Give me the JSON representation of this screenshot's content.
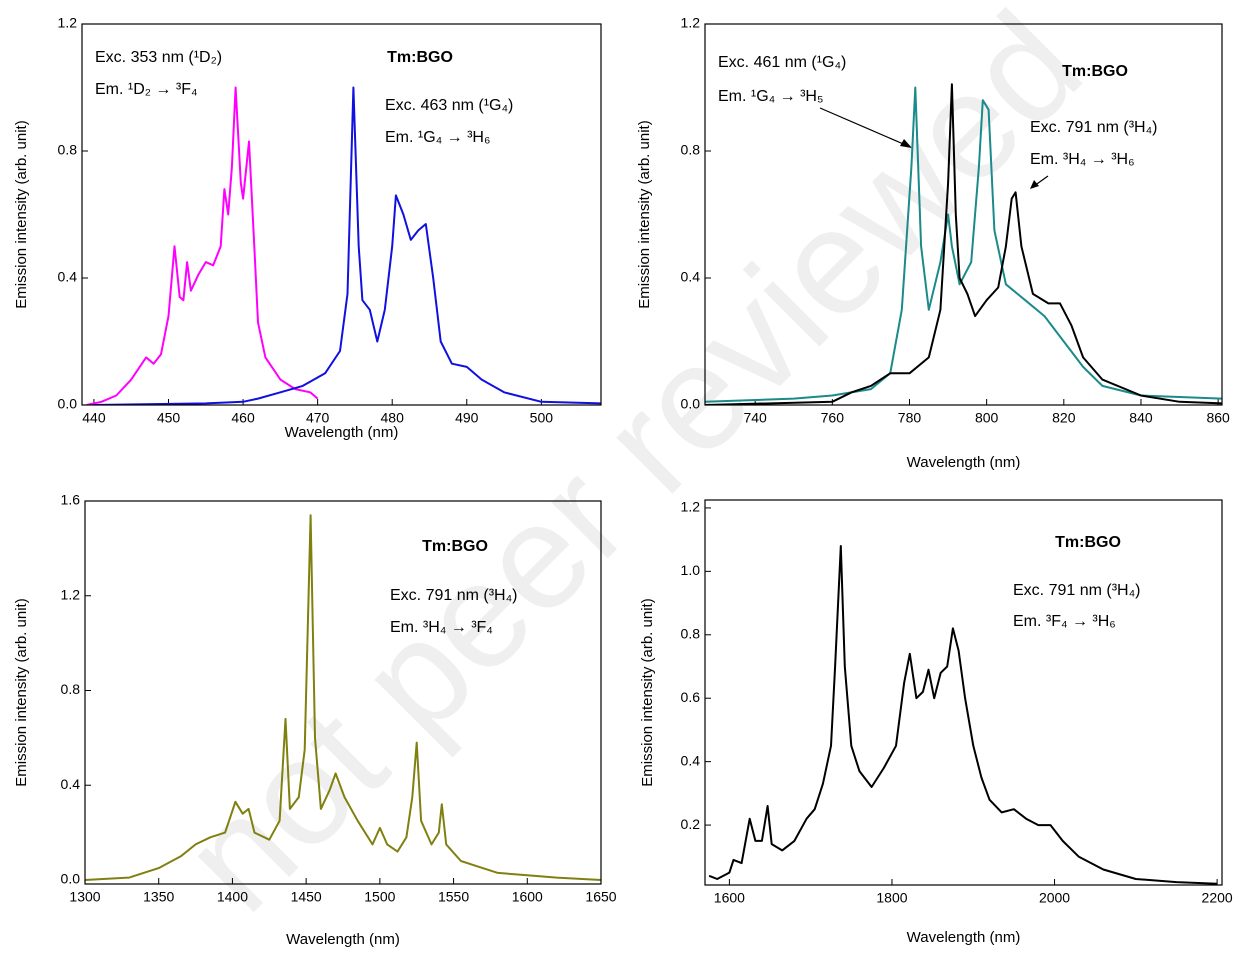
{
  "watermark": "not peer reviewed",
  "chart_data": [
    {
      "type": "line",
      "title": "Tm:BGO",
      "xlabel": "Wavelength (nm)",
      "ylabel": "Emission intensity (arb. unit)",
      "xlim": [
        438.4,
        508
      ],
      "ylim": [
        0,
        1.2
      ],
      "xticks": [
        440,
        450,
        460,
        470,
        480,
        490,
        500
      ],
      "yticks": [
        {
          "value": 0,
          "label": "0.0"
        },
        0.4,
        0.8,
        1.2
      ],
      "annotations": [
        "Exc. 353 nm (¹D₂)",
        "Em. ¹D₂ → ³F₄",
        "Exc. 463 nm (¹G₄)",
        "Em. ¹G₄ → ³H₆"
      ],
      "series": [
        {
          "color": "#ff00ff",
          "x": [
            439,
            441,
            443,
            445,
            447,
            448,
            449,
            450,
            450.8,
            451.5,
            452,
            452.5,
            453,
            454,
            455,
            456,
            457,
            457.5,
            458,
            458.5,
            459,
            459.7,
            460,
            460.8,
            461.5,
            462,
            463,
            465,
            467,
            469,
            470
          ],
          "values": [
            0.0,
            0.01,
            0.03,
            0.08,
            0.15,
            0.13,
            0.16,
            0.28,
            0.5,
            0.34,
            0.33,
            0.45,
            0.36,
            0.41,
            0.45,
            0.44,
            0.5,
            0.68,
            0.6,
            0.75,
            1.0,
            0.7,
            0.65,
            0.83,
            0.5,
            0.26,
            0.15,
            0.08,
            0.05,
            0.04,
            0.02
          ]
        },
        {
          "color": "#1010e0",
          "x": [
            440,
            455,
            460,
            462,
            465,
            468,
            471,
            473,
            474,
            474.8,
            475.5,
            476,
            477,
            478,
            479,
            480,
            480.5,
            481.5,
            482.5,
            483.5,
            484.5,
            485.5,
            486.5,
            488,
            490,
            492,
            495,
            500,
            508
          ],
          "values": [
            0.0,
            0.005,
            0.01,
            0.02,
            0.04,
            0.06,
            0.1,
            0.17,
            0.35,
            1.0,
            0.5,
            0.33,
            0.3,
            0.2,
            0.3,
            0.5,
            0.66,
            0.6,
            0.52,
            0.55,
            0.57,
            0.4,
            0.2,
            0.13,
            0.12,
            0.08,
            0.04,
            0.01,
            0.005
          ]
        }
      ]
    },
    {
      "type": "line",
      "title": "Tm:BGO",
      "xlabel": "Wavelength (nm)",
      "ylabel": "Emission intensity (arb. unit)",
      "xlim": [
        727,
        861
      ],
      "ylim": [
        0,
        1.2
      ],
      "xticks": [
        740,
        760,
        780,
        800,
        820,
        840,
        860
      ],
      "yticks": [
        {
          "value": 0,
          "label": "0.0"
        },
        0.4,
        0.8,
        1.2
      ],
      "annotations": [
        "Exc. 461 nm (¹G₄)",
        "Em. ¹G₄ → ³H₅",
        "Exc. 791 nm (³H₄)",
        "Em. ³H₄ → ³H₆"
      ],
      "series": [
        {
          "color": "#1a8a8a",
          "x": [
            727,
            750,
            760,
            770,
            775,
            778,
            780.5,
            781.5,
            783,
            785,
            788,
            790,
            791,
            793,
            796,
            798,
            799,
            800.5,
            802,
            805,
            810,
            815,
            820,
            825,
            830,
            840,
            861
          ],
          "values": [
            0.01,
            0.02,
            0.03,
            0.05,
            0.1,
            0.3,
            0.75,
            1.0,
            0.5,
            0.3,
            0.45,
            0.6,
            0.5,
            0.38,
            0.45,
            0.75,
            0.96,
            0.93,
            0.55,
            0.38,
            0.33,
            0.28,
            0.2,
            0.12,
            0.06,
            0.03,
            0.02
          ]
        },
        {
          "color": "#000000",
          "x": [
            727,
            760,
            765,
            770,
            775,
            780,
            785,
            788,
            790,
            791,
            792,
            793,
            795,
            797,
            800,
            803,
            805,
            806.5,
            807.5,
            809,
            812,
            816,
            819,
            822,
            825,
            830,
            840,
            850,
            861
          ],
          "values": [
            0.0,
            0.01,
            0.04,
            0.06,
            0.1,
            0.1,
            0.15,
            0.3,
            0.7,
            1.01,
            0.6,
            0.4,
            0.35,
            0.28,
            0.33,
            0.37,
            0.5,
            0.65,
            0.67,
            0.5,
            0.35,
            0.32,
            0.32,
            0.25,
            0.15,
            0.08,
            0.03,
            0.01,
            0.005
          ]
        }
      ]
    },
    {
      "type": "line",
      "title": "Tm:BGO",
      "xlabel": "Wavelength (nm)",
      "ylabel": "Emission intensity (arb. unit)",
      "xlim": [
        1300,
        1650
      ],
      "ylim": [
        -0.017,
        1.6
      ],
      "xticks": [
        1300,
        1350,
        1400,
        1450,
        1500,
        1550,
        1600,
        1650
      ],
      "yticks": [
        {
          "value": 0,
          "label": "0.0"
        },
        0.4,
        0.8,
        1.2,
        1.6
      ],
      "annotations": [
        "Exc. 791 nm (³H₄)",
        "Em. ³H₄ → ³F₄"
      ],
      "series": [
        {
          "color": "#808010",
          "x": [
            1300,
            1330,
            1350,
            1365,
            1375,
            1385,
            1395,
            1402,
            1407,
            1411,
            1415,
            1425,
            1432,
            1436,
            1439,
            1445,
            1449,
            1453,
            1456,
            1460,
            1466,
            1470,
            1476,
            1485,
            1495,
            1500,
            1505,
            1512,
            1518,
            1522,
            1525,
            1528,
            1535,
            1540,
            1542,
            1545,
            1555,
            1565,
            1580,
            1600,
            1620,
            1650
          ],
          "values": [
            0.0,
            0.01,
            0.05,
            0.1,
            0.15,
            0.18,
            0.2,
            0.33,
            0.28,
            0.3,
            0.2,
            0.17,
            0.25,
            0.68,
            0.3,
            0.35,
            0.55,
            1.54,
            0.6,
            0.3,
            0.38,
            0.45,
            0.35,
            0.25,
            0.15,
            0.22,
            0.15,
            0.12,
            0.18,
            0.35,
            0.58,
            0.25,
            0.15,
            0.2,
            0.32,
            0.15,
            0.08,
            0.06,
            0.03,
            0.02,
            0.01,
            0.0
          ]
        }
      ]
    },
    {
      "type": "line",
      "title": "Tm:BGO",
      "xlabel": "Wavelength (nm)",
      "ylabel": "Emission intensity (arb. unit)",
      "xlim": [
        1570,
        2206
      ],
      "ylim": [
        0.011,
        1.225
      ],
      "xticks": [
        1600,
        1800,
        2000,
        2200
      ],
      "yticks": [
        0.2,
        0.4,
        0.6,
        0.8,
        {
          "value": 1,
          "label": "1.0"
        },
        1.2
      ],
      "annotations": [
        "Exc. 791 nm (³H₄)",
        "Em. ³F₄ → ³H₆"
      ],
      "series": [
        {
          "color": "#000000",
          "x": [
            1575,
            1585,
            1600,
            1605,
            1615,
            1625,
            1632,
            1640,
            1647,
            1652,
            1665,
            1680,
            1695,
            1705,
            1715,
            1725,
            1730,
            1737,
            1742,
            1750,
            1760,
            1775,
            1790,
            1805,
            1815,
            1822,
            1830,
            1838,
            1845,
            1852,
            1860,
            1868,
            1875,
            1882,
            1890,
            1900,
            1910,
            1920,
            1935,
            1950,
            1965,
            1980,
            1995,
            2010,
            2030,
            2060,
            2100,
            2150,
            2200
          ],
          "values": [
            0.04,
            0.03,
            0.05,
            0.09,
            0.08,
            0.22,
            0.15,
            0.15,
            0.26,
            0.14,
            0.12,
            0.15,
            0.22,
            0.25,
            0.33,
            0.45,
            0.7,
            1.08,
            0.7,
            0.45,
            0.37,
            0.32,
            0.38,
            0.45,
            0.65,
            0.74,
            0.6,
            0.62,
            0.69,
            0.6,
            0.68,
            0.7,
            0.82,
            0.75,
            0.6,
            0.45,
            0.35,
            0.28,
            0.24,
            0.25,
            0.22,
            0.2,
            0.2,
            0.15,
            0.1,
            0.06,
            0.03,
            0.02,
            0.015
          ]
        }
      ]
    }
  ]
}
